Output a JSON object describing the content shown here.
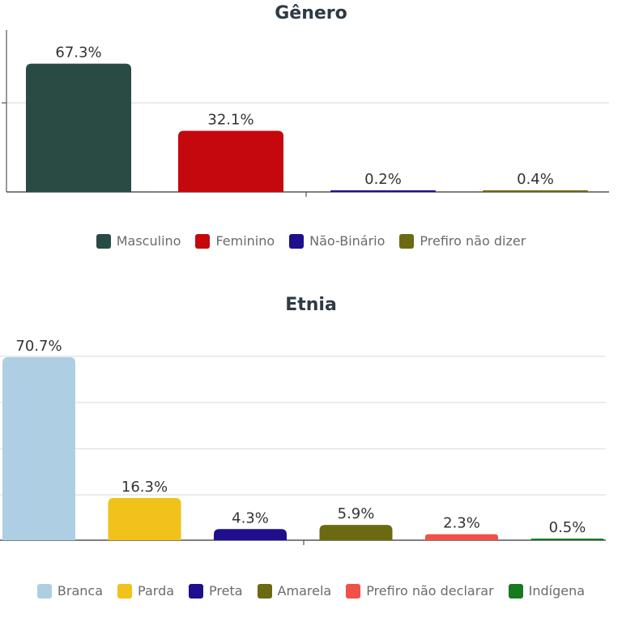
{
  "charts": [
    {
      "id": "genero",
      "title": "Gênero",
      "colors": [
        "#2a4a44",
        "#c4080d",
        "#1f0f8c",
        "#6b6a10"
      ],
      "legend": [
        "Masculino",
        "Feminino",
        "Não-Binário",
        "Prefiro não dizer"
      ]
    },
    {
      "id": "etnia",
      "title": "Etnia",
      "colors": [
        "#aecfe3",
        "#f0c21a",
        "#1f0f8c",
        "#6b6a10",
        "#ef5147",
        "#177a20"
      ],
      "legend": [
        "Branca",
        "Parda",
        "Preta",
        "Amarela",
        "Prefiro não declarar",
        "Indígena"
      ]
    }
  ],
  "chart_data": [
    {
      "type": "bar",
      "title": "Gênero",
      "categories": [
        "Masculino",
        "Feminino",
        "Não-Binário",
        "Prefiro não dizer"
      ],
      "values": [
        67.3,
        32.1,
        0.2,
        0.4
      ],
      "labels": [
        "67.3%",
        "32.1%",
        "0.2%",
        "0.4%"
      ],
      "ylim": [
        0,
        85
      ],
      "grid": true,
      "legend_position": "bottom"
    },
    {
      "type": "bar",
      "title": "Etnia",
      "categories": [
        "Branca",
        "Parda",
        "Preta",
        "Amarela",
        "Prefiro não declarar",
        "Indígena"
      ],
      "values": [
        70.7,
        16.3,
        4.3,
        5.9,
        2.3,
        0.5
      ],
      "labels": [
        "70.7%",
        "16.3%",
        "4.3%",
        "5.9%",
        "2.3%",
        "0.5%"
      ],
      "ylim": [
        0,
        71
      ],
      "grid": true,
      "legend_position": "bottom"
    }
  ]
}
